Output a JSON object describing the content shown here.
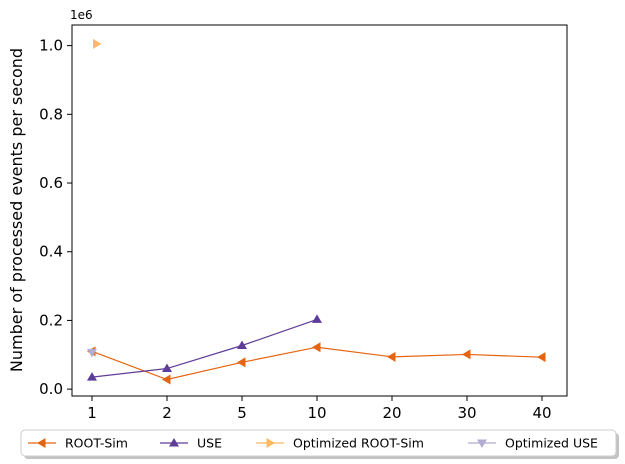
{
  "chart_data": {
    "type": "line",
    "title": "",
    "xlabel": "",
    "ylabel": "Number of processed events per second",
    "y_offset_label": "1e6",
    "x_scale": "categorical",
    "categories": [
      "1",
      "2",
      "5",
      "10",
      "20",
      "30",
      "40"
    ],
    "ylim": [
      -0.02,
      1.06
    ],
    "yticks": [
      0.0,
      0.2,
      0.4,
      0.6,
      0.8,
      1.0
    ],
    "ytick_labels": [
      "0.0",
      "0.2",
      "0.4",
      "0.6",
      "0.8",
      "1.0"
    ],
    "grid": false,
    "legend_placement": "bottom-center",
    "series": [
      {
        "name": "ROOT-Sim",
        "color": "#e6640f",
        "marker": "triangle-left",
        "x": [
          "1",
          "2",
          "5",
          "10",
          "20",
          "30",
          "40"
        ],
        "values": [
          0.11,
          0.028,
          0.078,
          0.122,
          0.094,
          0.101,
          0.093
        ]
      },
      {
        "name": "USE",
        "color": "#5e3c99",
        "marker": "triangle-up",
        "x": [
          "1",
          "2",
          "5",
          "10"
        ],
        "values": [
          0.035,
          0.06,
          0.127,
          0.203
        ]
      },
      {
        "name": "Optimized ROOT-Sim",
        "color": "#fdb863",
        "marker": "triangle-right",
        "x_offset": 0.06,
        "x": [
          "1"
        ],
        "values": [
          1.005
        ]
      },
      {
        "name": "Optimized USE",
        "color": "#b2abd2",
        "marker": "triangle-down",
        "x": [
          "1"
        ],
        "values": [
          0.107
        ]
      }
    ]
  }
}
